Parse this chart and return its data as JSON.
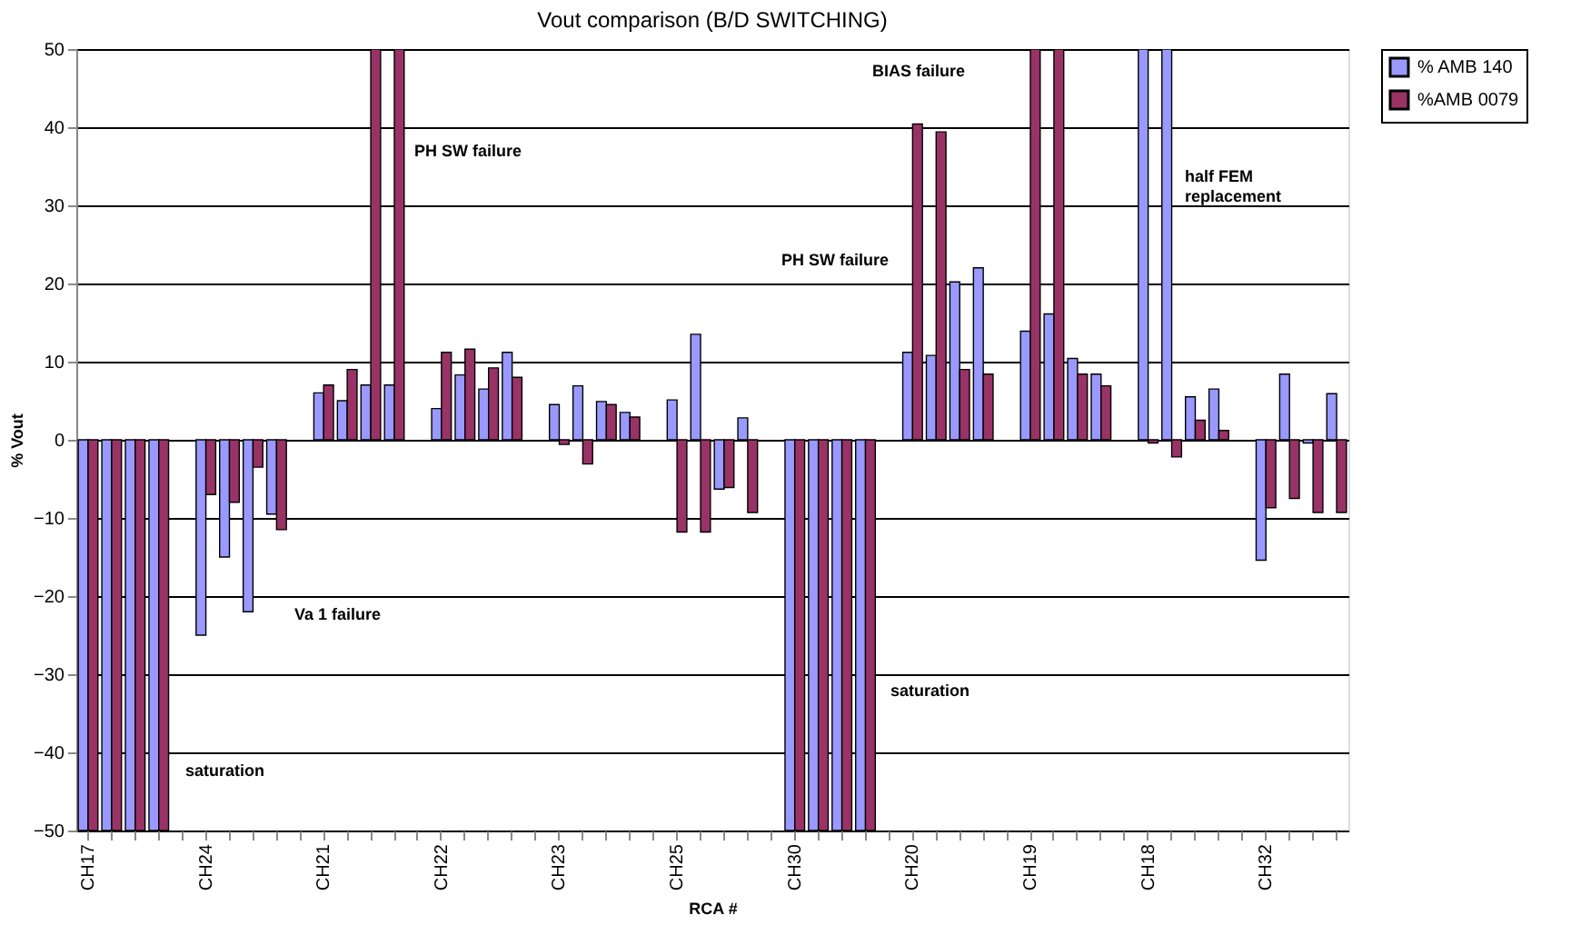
{
  "chart_data": {
    "type": "bar",
    "title": "Vout comparison (B/D SWITCHING)",
    "xlabel": "RCA #",
    "ylabel": "% Vout",
    "categories": [
      "CH17",
      null,
      null,
      null,
      null,
      "CH24",
      null,
      null,
      null,
      null,
      "CH21",
      null,
      null,
      null,
      null,
      "CH22",
      null,
      null,
      null,
      null,
      "CH23",
      null,
      null,
      null,
      null,
      "CH25",
      null,
      null,
      null,
      null,
      "CH30",
      null,
      null,
      null,
      null,
      "CH20",
      null,
      null,
      null,
      null,
      "CH19",
      null,
      null,
      null,
      null,
      "CH18",
      null,
      null,
      null,
      null,
      "CH32",
      null,
      null,
      null
    ],
    "series": [
      {
        "name": "% AMB 140",
        "color": "#9999ff",
        "values": [
          -50,
          -50,
          -50,
          -50,
          null,
          -25,
          -15,
          -22,
          -9.5,
          null,
          6,
          5,
          7,
          7,
          null,
          4,
          8.3,
          6.5,
          11.2,
          null,
          4.5,
          6.9,
          4.9,
          3.5,
          null,
          5.1,
          13.5,
          -6.3,
          2.8,
          null,
          -50,
          -50,
          -50,
          -50,
          null,
          11.2,
          10.8,
          20.2,
          22,
          null,
          13.9,
          16.1,
          10.4,
          8.4,
          null,
          50,
          50,
          5.5,
          6.5,
          null,
          -15.4,
          8.4,
          -0.4,
          5.9
        ]
      },
      {
        "name": "%AMB 0079",
        "color": "#993366",
        "values": [
          -50,
          -50,
          -50,
          -50,
          null,
          -7,
          -8,
          -3.5,
          -11.5,
          null,
          7,
          9,
          50,
          50,
          null,
          11.2,
          11.6,
          9.2,
          8,
          null,
          -0.6,
          -3.1,
          4.5,
          2.9,
          null,
          -11.8,
          -11.8,
          -6.1,
          -9.3,
          null,
          -50,
          -50,
          -50,
          -50,
          null,
          40.4,
          39.4,
          9,
          8.4,
          null,
          50,
          50,
          8.4,
          6.9,
          null,
          -0.4,
          -2.2,
          2.5,
          1.2,
          null,
          -8.7,
          -7.5,
          -9.3,
          -9.3
        ]
      }
    ],
    "ylim": [
      -50,
      50
    ],
    "yticks": [
      -50,
      -40,
      -30,
      -20,
      -10,
      0,
      10,
      20,
      30,
      40,
      50
    ],
    "grid": "y",
    "legend": "right",
    "annotations": [
      "PH SW failure",
      "Va 1 failure",
      "saturation",
      "PH SW failure",
      "BIAS failure",
      "half FEM\nreplacement",
      "saturation"
    ]
  }
}
